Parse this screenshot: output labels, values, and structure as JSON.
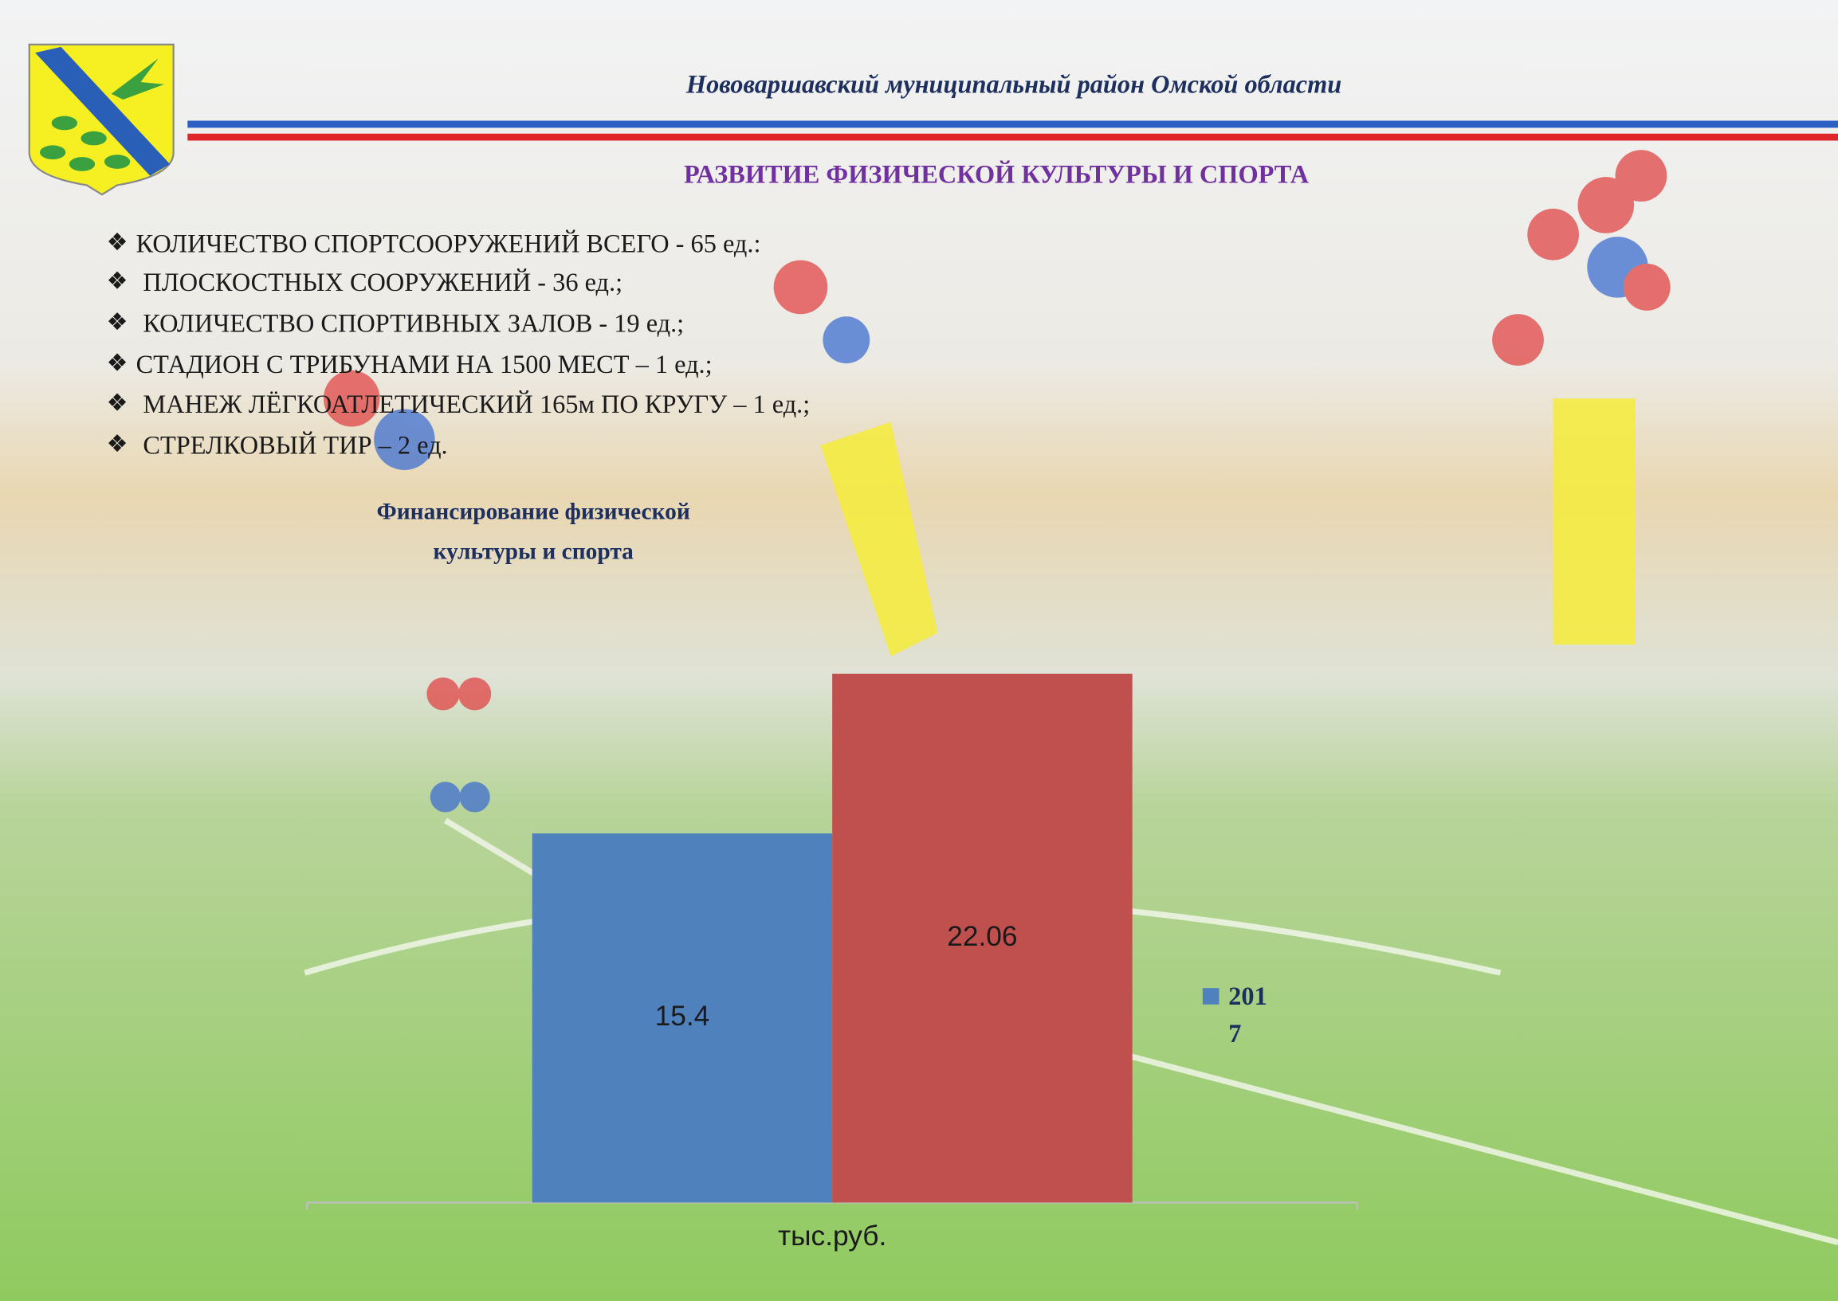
{
  "header": {
    "title": "Нововаршавский муниципальный район Омской области",
    "subtitle": "РАЗВИТИЕ ФИЗИЧЕСКОЙ КУЛЬТУРЫ И СПОРТА"
  },
  "bullets": [
    "КОЛИЧЕСТВО СПОРТСООРУЖЕНИЙ ВСЕГО - 65 ед.:",
    "ПЛОСКОСТНЫХ СООРУЖЕНИЙ - 36 ед.;",
    "КОЛИЧЕСТВО СПОРТИВНЫХ ЗАЛОВ - 19 ед.;",
    "СТАДИОН С ТРИБУНАМИ НА 1500 МЕСТ – 1 ед.;",
    "МАНЕЖ ЛЁГКОАТЛЕТИЧЕСКИЙ 165м ПО КРУГУ – 1 ед.;",
    "СТРЕЛКОВЫЙ ТИР – 2 ед."
  ],
  "chart_data": {
    "type": "bar",
    "title": "Финансирование физической культуры и спорта",
    "categories": [
      "тыс.руб."
    ],
    "series": [
      {
        "name": "2017",
        "color": "#4f81bd",
        "values": [
          15.4
        ]
      },
      {
        "color": "#c0504d",
        "values": [
          22.06
        ]
      }
    ],
    "ylim": [
      0,
      30
    ],
    "data_labels": true,
    "legend": "right"
  }
}
